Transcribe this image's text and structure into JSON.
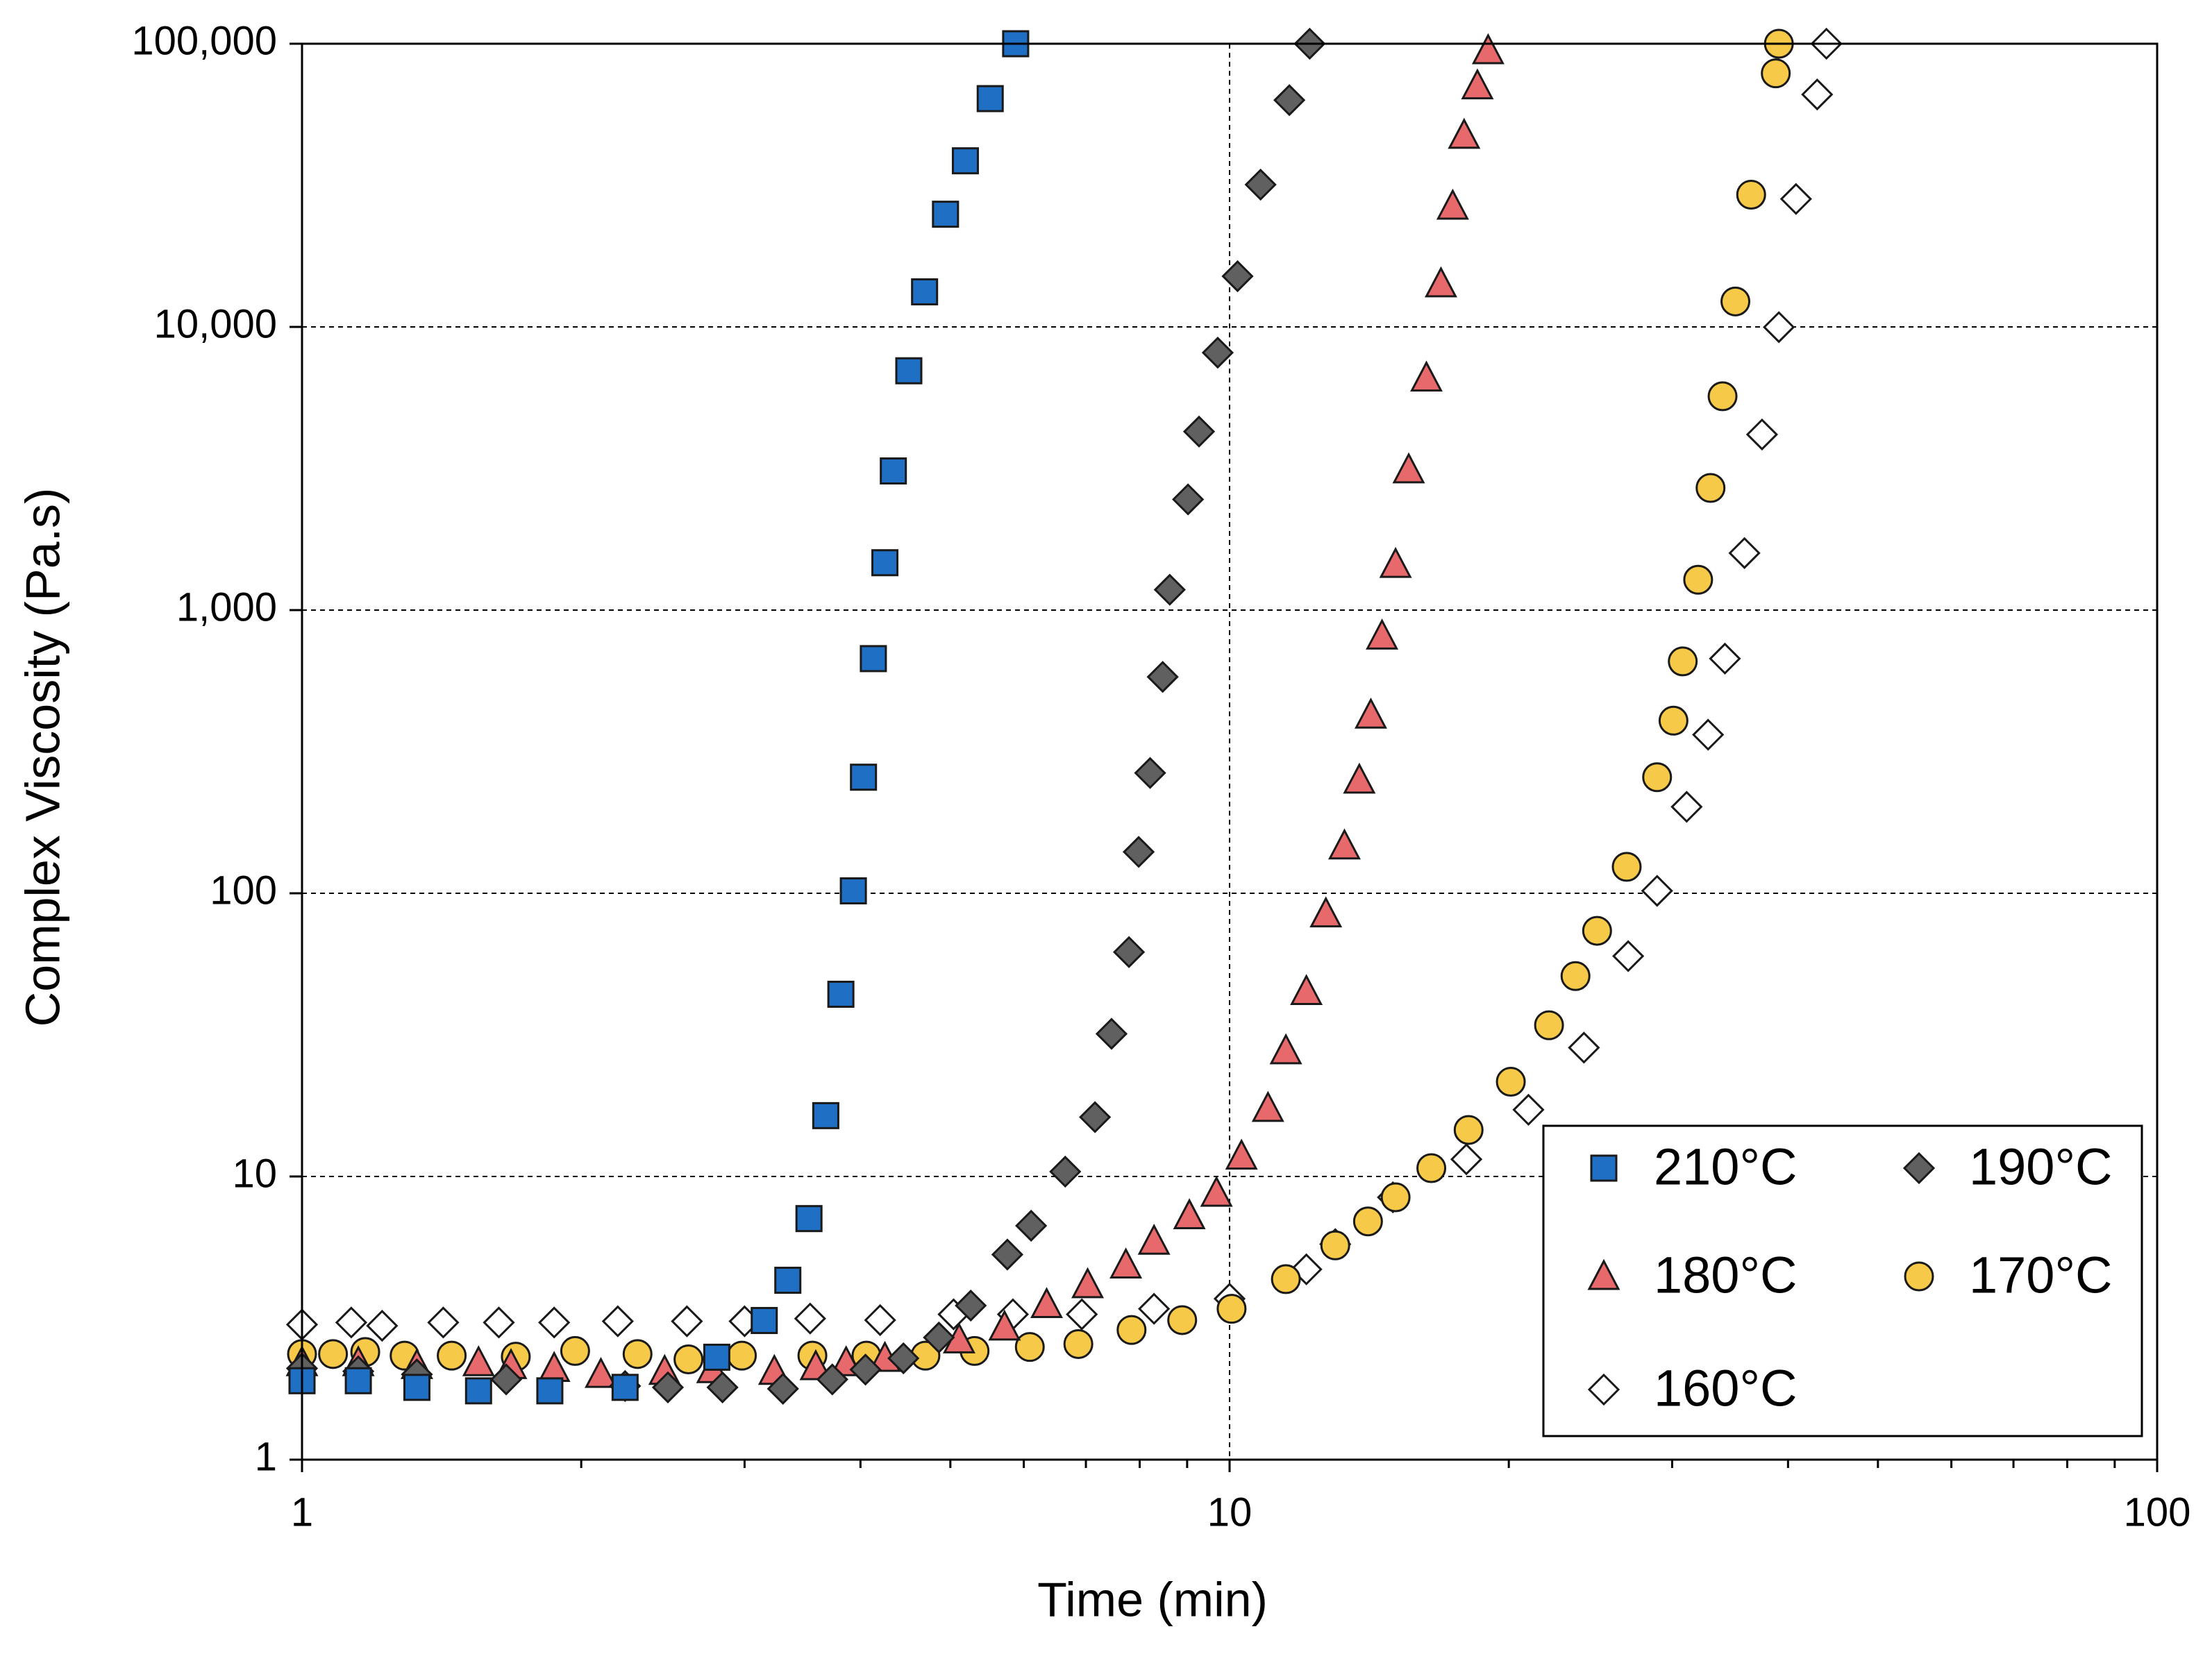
{
  "chart_data": {
    "type": "scatter",
    "xlabel": "Time (min)",
    "ylabel": "Complex Viscosity (Pa.s)",
    "xlog": true,
    "ylog": true,
    "grid": true,
    "legend": "lower right",
    "legend_columns": 2,
    "xlim": [
      1,
      100
    ],
    "xticks": [
      1,
      10,
      100
    ],
    "xminorticks": [
      2,
      3,
      4,
      5,
      6,
      7,
      8,
      9,
      20,
      30,
      40,
      50,
      60,
      70,
      80,
      90
    ],
    "ylim": [
      1,
      100000
    ],
    "yticks": [
      1,
      10,
      100,
      {
        "value": 1000,
        "label": "1,000"
      },
      {
        "value": 10000,
        "label": "10,000"
      },
      {
        "value": 100000,
        "label": "100,000"
      }
    ],
    "series": [
      {
        "name": "210°C",
        "color": "#1f6fc5",
        "marker": "square",
        "x": [
          1.0,
          1.15,
          1.33,
          1.55,
          1.85,
          2.23,
          2.8,
          3.15,
          3.34,
          3.52,
          3.67,
          3.81,
          3.93,
          4.03,
          4.13,
          4.25,
          4.34,
          4.51,
          4.69,
          4.94,
          5.19,
          5.52,
          5.88
        ],
        "values": [
          1.9,
          1.9,
          1.8,
          1.75,
          1.75,
          1.8,
          2.3,
          3.1,
          4.3,
          7.1,
          16.4,
          44,
          102,
          257,
          674,
          1470,
          3100,
          7000,
          13300,
          25000,
          38600,
          64000,
          100000
        ]
      },
      {
        "name": "190°C",
        "color": "#606060",
        "marker": "diamond",
        "x": [
          1.0,
          1.15,
          1.33,
          1.66,
          2.23,
          2.48,
          2.84,
          3.3,
          3.73,
          4.05,
          4.45,
          4.86,
          5.26,
          5.76,
          6.11,
          6.65,
          7.16,
          7.46,
          7.79,
          7.98,
          8.21,
          8.47,
          8.62,
          9.02,
          9.27,
          9.71,
          10.2,
          10.8,
          11.6,
          12.2
        ],
        "values": [
          2.1,
          2.05,
          2.0,
          1.92,
          1.82,
          1.8,
          1.8,
          1.78,
          1.92,
          2.08,
          2.28,
          2.7,
          3.5,
          5.3,
          6.7,
          10.4,
          16.2,
          31.9,
          62,
          140,
          266,
          581,
          1180,
          2460,
          4270,
          8110,
          15100,
          31800,
          63200,
          100000
        ]
      },
      {
        "name": "180°C",
        "color": "#e8696b",
        "marker": "triangle",
        "x": [
          1.0,
          1.15,
          1.33,
          1.55,
          1.68,
          1.87,
          2.1,
          2.46,
          2.77,
          3.23,
          3.58,
          3.86,
          4.25,
          5.11,
          5.72,
          6.35,
          7.03,
          7.73,
          8.29,
          9.05,
          9.68,
          10.3,
          11.0,
          11.5,
          12.1,
          12.7,
          13.3,
          13.8,
          14.2,
          14.6,
          15.1,
          15.6,
          16.3,
          16.9,
          17.4,
          17.9,
          18.5,
          19.0
        ],
        "values": [
          2.2,
          2.2,
          2.15,
          2.2,
          2.15,
          2.1,
          2.0,
          2.05,
          2.08,
          2.05,
          2.13,
          2.2,
          2.28,
          2.65,
          2.94,
          3.53,
          4.15,
          4.87,
          5.91,
          7.27,
          8.73,
          11.8,
          17.4,
          27.8,
          45,
          84.6,
          147,
          251,
          426,
          810,
          1450,
          3130,
          6600,
          14200,
          26700,
          47500,
          71000,
          94500
        ]
      },
      {
        "name": "170°C",
        "color": "#f7c948",
        "marker": "circle",
        "x": [
          1.0,
          1.08,
          1.17,
          1.29,
          1.45,
          1.7,
          1.97,
          2.3,
          2.61,
          2.98,
          3.55,
          4.06,
          4.7,
          5.31,
          6.09,
          6.87,
          7.84,
          8.89,
          10.05,
          11.5,
          13.0,
          14.1,
          15.1,
          16.5,
          18.1,
          20.1,
          22.1,
          23.6,
          24.9,
          26.8,
          28.9,
          30.1,
          30.8,
          32.0,
          33.0,
          34.0,
          35.1,
          36.5,
          38.8,
          39.1
        ],
        "values": [
          2.36,
          2.36,
          2.4,
          2.33,
          2.33,
          2.31,
          2.42,
          2.36,
          2.26,
          2.33,
          2.33,
          2.33,
          2.33,
          2.42,
          2.5,
          2.56,
          2.87,
          3.11,
          3.41,
          4.34,
          5.71,
          6.94,
          8.44,
          10.7,
          14.6,
          21.6,
          34.2,
          51,
          73.7,
          124,
          257,
          407,
          659,
          1280,
          2700,
          5690,
          12300,
          29300,
          78600,
          100000
        ]
      },
      {
        "name": "160°C",
        "color": "#ffffff",
        "marker": "diamond",
        "x": [
          1.0,
          1.13,
          1.22,
          1.42,
          1.63,
          1.87,
          2.19,
          2.6,
          3.0,
          3.53,
          4.2,
          5.04,
          5.84,
          6.93,
          8.29,
          10.0,
          12.1,
          13.0,
          15.0,
          18.0,
          21.0,
          24.1,
          26.9,
          28.9,
          31.1,
          32.8,
          34.2,
          35.9,
          37.5,
          39.1,
          40.8,
          43.0,
          44.0
        ],
        "values": [
          3.0,
          3.05,
          2.97,
          3.05,
          3.05,
          3.05,
          3.08,
          3.08,
          3.08,
          3.15,
          3.11,
          3.26,
          3.26,
          3.26,
          3.41,
          3.7,
          4.7,
          5.77,
          8.44,
          11.5,
          17.2,
          28.5,
          60,
          102,
          202,
          363,
          674,
          1590,
          4170,
          9980,
          28300,
          66200,
          100000
        ]
      }
    ]
  }
}
